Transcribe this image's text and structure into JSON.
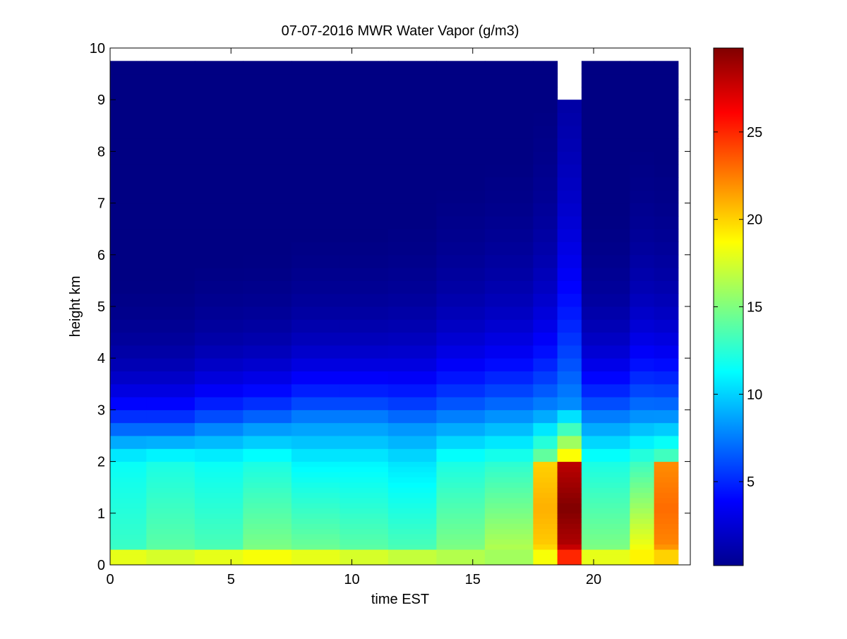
{
  "chart_data": {
    "type": "heatmap",
    "title": "07-07-2016 MWR Water Vapor (g/m3)",
    "xlabel": "time EST",
    "ylabel": "height km",
    "xlim": [
      0,
      24
    ],
    "ylim": [
      0,
      10
    ],
    "x_ticks": [
      0,
      5,
      10,
      15,
      20
    ],
    "y_ticks": [
      0,
      1,
      2,
      3,
      4,
      5,
      6,
      7,
      8,
      9,
      10
    ],
    "colorbar": {
      "colormap": "jet",
      "range": [
        0.2,
        29.8
      ],
      "ticks": [
        5,
        10,
        15,
        20,
        25
      ]
    },
    "grid": false,
    "height_levels_km": [
      0.0,
      0.1,
      0.2,
      0.3,
      0.4,
      0.5,
      0.6,
      0.7,
      0.8,
      0.9,
      1.0,
      1.1,
      1.2,
      1.3,
      1.4,
      1.5,
      1.6,
      1.7,
      1.8,
      1.9,
      2.0,
      2.25,
      2.5,
      2.75,
      3.0,
      3.25,
      3.5,
      3.75,
      4.0,
      4.25,
      4.5,
      4.75,
      5.0,
      5.25,
      5.5,
      5.75,
      6.0,
      6.25,
      6.5,
      6.75,
      7.0,
      7.25,
      7.5,
      7.75,
      8.0,
      8.25,
      8.5,
      8.75,
      9.0,
      9.25,
      9.5,
      9.75
    ],
    "profiles": [
      {
        "time_start": 0.0,
        "time_end": 1.5,
        "surface": 18,
        "low": 13,
        "mid": 11.5,
        "mid_top": 2.5,
        "decay": 0.9,
        "peak": null,
        "top": 9.75
      },
      {
        "time_start": 1.5,
        "time_end": 3.5,
        "surface": 17.5,
        "low": 14,
        "mid": 12,
        "mid_top": 2.5,
        "decay": 0.9,
        "peak": null,
        "top": 9.75
      },
      {
        "time_start": 3.5,
        "time_end": 5.5,
        "surface": 18,
        "low": 13.5,
        "mid": 11.5,
        "mid_top": 2.6,
        "decay": 1.0,
        "peak": null,
        "top": 9.75
      },
      {
        "time_start": 5.5,
        "time_end": 7.5,
        "surface": 18.5,
        "low": 15,
        "mid": 12,
        "mid_top": 2.7,
        "decay": 1.0,
        "peak": null,
        "top": 9.75
      },
      {
        "time_start": 7.5,
        "time_end": 9.5,
        "surface": 18,
        "low": 14.5,
        "mid": 11,
        "mid_top": 2.8,
        "decay": 1.1,
        "peak": null,
        "top": 9.75
      },
      {
        "time_start": 9.5,
        "time_end": 11.5,
        "surface": 17.5,
        "low": 14,
        "mid": 11,
        "mid_top": 2.8,
        "decay": 1.1,
        "peak": null,
        "top": 9.75
      },
      {
        "time_start": 11.5,
        "time_end": 13.5,
        "surface": 17,
        "low": 13.5,
        "mid": 10.5,
        "mid_top": 2.7,
        "decay": 1.2,
        "peak": null,
        "top": 9.75
      },
      {
        "time_start": 13.5,
        "time_end": 15.5,
        "surface": 16.5,
        "low": 15,
        "mid": 12,
        "mid_top": 2.8,
        "decay": 1.4,
        "peak": null,
        "top": 9.75
      },
      {
        "time_start": 15.5,
        "time_end": 17.5,
        "surface": 16,
        "low": 16.5,
        "mid": 12.5,
        "mid_top": 2.9,
        "decay": 1.5,
        "peak": null,
        "top": 9.75
      },
      {
        "time_start": 17.5,
        "time_end": 18.5,
        "surface": 18.5,
        "low": 20,
        "mid": 15,
        "mid_top": 3.0,
        "decay": 1.8,
        "peak": 21,
        "top": 9.75
      },
      {
        "time_start": 18.5,
        "time_end": 19.5,
        "surface": 25,
        "low": 28,
        "mid": 20,
        "mid_top": 3.1,
        "decay": 3.2,
        "peak": 29.8,
        "top": 9.0
      },
      {
        "time_start": 19.5,
        "time_end": 21.5,
        "surface": 18,
        "low": 15,
        "mid": 12,
        "mid_top": 2.8,
        "decay": 1.2,
        "peak": null,
        "top": 9.75
      },
      {
        "time_start": 21.5,
        "time_end": 22.5,
        "surface": 19,
        "low": 18.5,
        "mid": 13,
        "mid_top": 2.9,
        "decay": 1.6,
        "peak": null,
        "top": 9.75
      },
      {
        "time_start": 22.5,
        "time_end": 23.5,
        "surface": 20,
        "low": 22,
        "mid": 14,
        "mid_top": 2.9,
        "decay": 1.5,
        "peak": 23,
        "top": 9.75
      }
    ]
  }
}
